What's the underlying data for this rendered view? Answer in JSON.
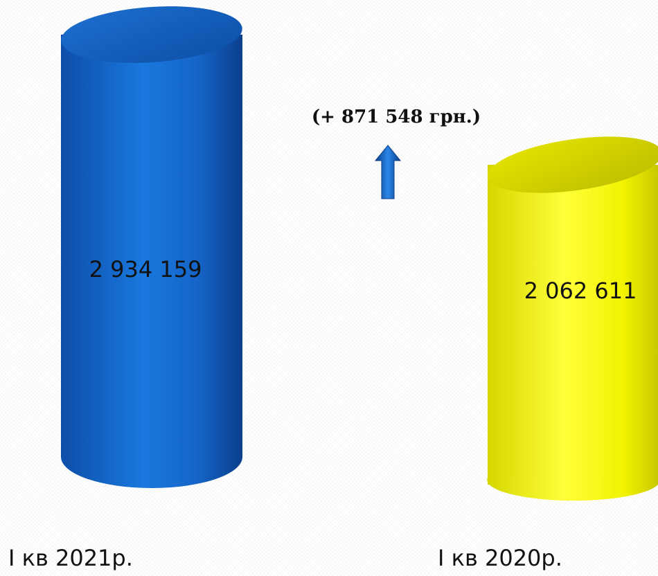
{
  "chart_data": {
    "type": "bar",
    "categories": [
      "I кв 2021р.",
      "I кв 2020р."
    ],
    "values": [
      2934159,
      2062611
    ],
    "value_labels": [
      "2 934 159",
      "2 062 611"
    ],
    "colors": [
      "#1a6fd1",
      "#f5f500"
    ],
    "annotation": "(+ 871 548 грн.)",
    "difference": 871548,
    "arrow": "up-arrow-icon",
    "title": "",
    "xlabel": "",
    "ylabel": "",
    "grid": false,
    "legend": "none"
  }
}
